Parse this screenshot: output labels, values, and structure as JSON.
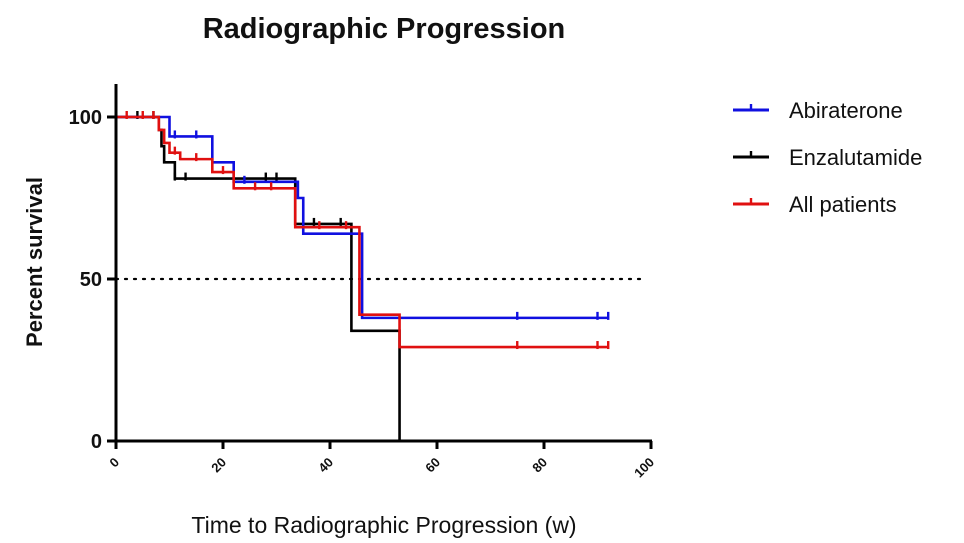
{
  "chart_data": {
    "type": "line",
    "subtype": "kaplan-meier-step",
    "title": "Radiographic Progression",
    "xlabel": "Time to Radiographic Progression (w)",
    "ylabel": "Percent survival",
    "xlim": [
      0,
      100
    ],
    "ylim": [
      0,
      110
    ],
    "xticks": [
      0,
      20,
      40,
      60,
      80,
      100
    ],
    "yticks": [
      0,
      50,
      100
    ],
    "reference_line": {
      "y": 50,
      "style": "dotted",
      "color": "#000000"
    },
    "legend_position": "top-right",
    "grid": false,
    "series": [
      {
        "name": "Abiraterone",
        "color": "#1010e0",
        "steps": [
          [
            0,
            100
          ],
          [
            10,
            94
          ],
          [
            18,
            86
          ],
          [
            22,
            80
          ],
          [
            34,
            75
          ],
          [
            35,
            64
          ],
          [
            45,
            64
          ],
          [
            46,
            38
          ],
          [
            92,
            38
          ]
        ],
        "censored": [
          [
            11,
            94
          ],
          [
            15,
            94
          ],
          [
            18,
            86
          ],
          [
            24,
            80
          ],
          [
            75,
            38
          ],
          [
            90,
            38
          ],
          [
            92,
            38
          ]
        ]
      },
      {
        "name": "Enzalutamide",
        "color": "#000000",
        "steps": [
          [
            0,
            100
          ],
          [
            8,
            96
          ],
          [
            8.5,
            91
          ],
          [
            9,
            86
          ],
          [
            11,
            81
          ],
          [
            33,
            81
          ],
          [
            33.5,
            67
          ],
          [
            44,
            67
          ],
          [
            44,
            34
          ],
          [
            53,
            34
          ],
          [
            53,
            0
          ]
        ],
        "censored": [
          [
            4,
            100
          ],
          [
            7,
            100
          ],
          [
            11,
            81
          ],
          [
            13,
            81
          ],
          [
            28,
            81
          ],
          [
            30,
            81
          ],
          [
            37,
            67
          ],
          [
            42,
            67
          ]
        ]
      },
      {
        "name": "All patients",
        "color": "#e01010",
        "steps": [
          [
            0,
            100
          ],
          [
            8,
            96
          ],
          [
            9,
            92
          ],
          [
            10,
            89
          ],
          [
            12,
            87
          ],
          [
            18,
            83
          ],
          [
            22,
            78
          ],
          [
            33,
            78
          ],
          [
            33.5,
            66
          ],
          [
            45,
            66
          ],
          [
            45.5,
            39
          ],
          [
            53,
            39
          ],
          [
            53,
            29
          ],
          [
            92,
            29
          ]
        ],
        "censored": [
          [
            2,
            100
          ],
          [
            5,
            100
          ],
          [
            7,
            100
          ],
          [
            11,
            89
          ],
          [
            15,
            87
          ],
          [
            20,
            83
          ],
          [
            26,
            78
          ],
          [
            29,
            78
          ],
          [
            38,
            66
          ],
          [
            43,
            66
          ],
          [
            75,
            29
          ],
          [
            90,
            29
          ],
          [
            92,
            29
          ]
        ]
      }
    ]
  }
}
